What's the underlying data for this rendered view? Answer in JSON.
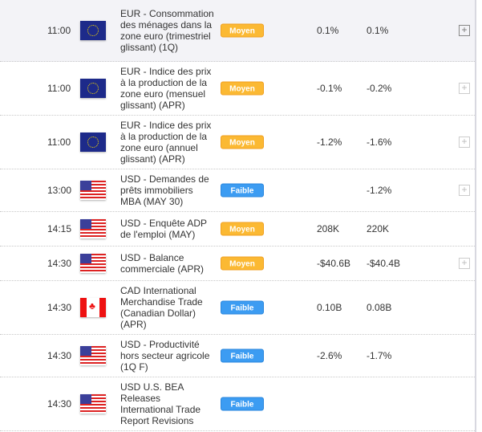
{
  "rows": [
    {
      "time": "11:00",
      "flag": "eu",
      "flag_icon": "eu-flag-icon",
      "title": "EUR - Consommation des ménages dans la zone euro (trimestriel glissant) (1Q)",
      "importance": "Moyen",
      "actual": "0.1%",
      "forecast": "0.1%",
      "plus": "+"
    },
    {
      "time": "11:00",
      "flag": "eu",
      "flag_icon": "eu-flag-icon",
      "title": "EUR - Indice des prix à la production de la zone euro (mensuel glissant) (APR)",
      "importance": "Moyen",
      "actual": "-0.1%",
      "forecast": "-0.2%",
      "plus": "+"
    },
    {
      "time": "11:00",
      "flag": "eu",
      "flag_icon": "eu-flag-icon",
      "title": "EUR - Indice des prix à la production de la zone euro (annuel glissant) (APR)",
      "importance": "Moyen",
      "actual": "-1.2%",
      "forecast": "-1.6%",
      "plus": "+"
    },
    {
      "time": "13:00",
      "flag": "us",
      "flag_icon": "us-flag-icon",
      "title": "USD - Demandes de prêts immobiliers MBA (MAY 30)",
      "importance": "Faible",
      "actual": "",
      "forecast": "-1.2%",
      "plus": "+"
    },
    {
      "time": "14:15",
      "flag": "us",
      "flag_icon": "us-flag-icon",
      "title": "USD - Enquête ADP de l'emploi (MAY)",
      "importance": "Moyen",
      "actual": "208K",
      "forecast": "220K",
      "plus": ""
    },
    {
      "time": "14:30",
      "flag": "us",
      "flag_icon": "us-flag-icon",
      "title": "USD - Balance commerciale (APR)",
      "importance": "Moyen",
      "actual": "-$40.6B",
      "forecast": "-$40.4B",
      "plus": "+"
    },
    {
      "time": "14:30",
      "flag": "ca",
      "flag_icon": "canada-flag-icon",
      "title": "CAD International Merchandise Trade (Canadian Dollar) (APR)",
      "importance": "Faible",
      "actual": "0.10B",
      "forecast": "0.08B",
      "plus": ""
    },
    {
      "time": "14:30",
      "flag": "us",
      "flag_icon": "us-flag-icon",
      "title": "USD - Productivité hors secteur agricole (1Q F)",
      "importance": "Faible",
      "actual": "-2.6%",
      "forecast": "-1.7%",
      "plus": ""
    },
    {
      "time": "14:30",
      "flag": "us",
      "flag_icon": "us-flag-icon",
      "title": "USD U.S. BEA Releases International Trade Report Revisions",
      "importance": "Faible",
      "actual": "",
      "forecast": "",
      "plus": ""
    }
  ]
}
